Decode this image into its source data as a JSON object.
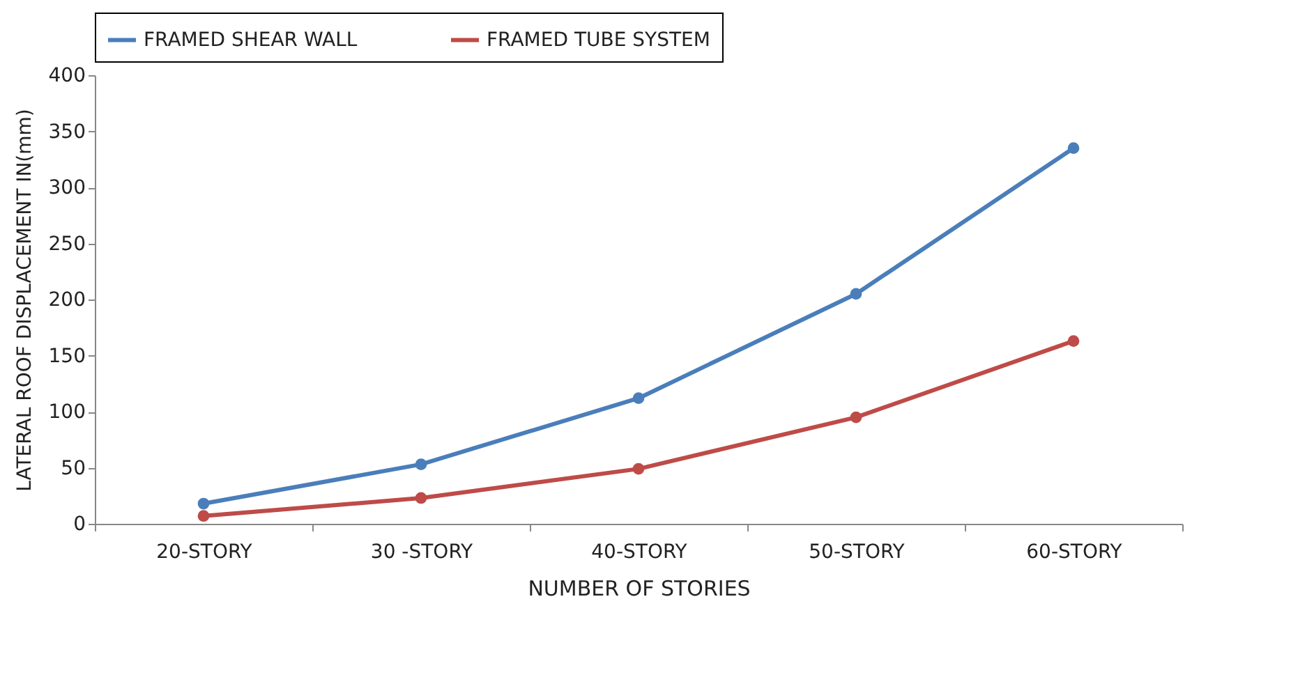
{
  "chart_data": {
    "type": "line",
    "xlabel": "NUMBER OF STORIES",
    "ylabel": "LATERAL ROOF DISPLACEMENT IN(mm)",
    "categories": [
      "20-STORY",
      "30 -STORY",
      "40-STORY",
      "50-STORY",
      "60-STORY"
    ],
    "series": [
      {
        "name": "FRAMED SHEAR WALL",
        "color": "#4a7ebb",
        "values": [
          18,
          53,
          112,
          205,
          335
        ]
      },
      {
        "name": "FRAMED TUBE SYSTEM",
        "color": "#be4b48",
        "values": [
          7,
          23,
          49,
          95,
          163
        ]
      }
    ],
    "ylim": [
      0,
      400
    ],
    "yticks": [
      0,
      50,
      100,
      150,
      200,
      250,
      300,
      350,
      400
    ],
    "grid": false,
    "legend": "top",
    "marker": "circle",
    "line_style": "solid"
  }
}
